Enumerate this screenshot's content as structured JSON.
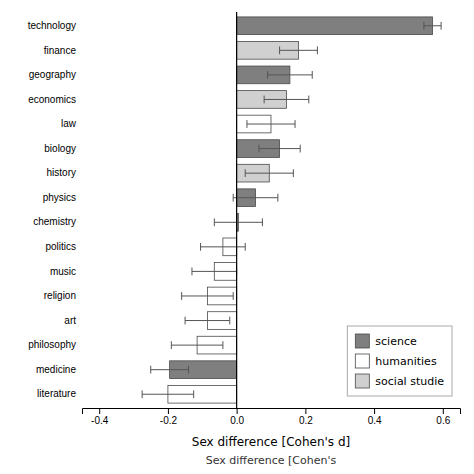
{
  "chart_data": {
    "type": "bar",
    "orientation": "horizontal",
    "xlabel": "Sex difference [Cohen's d]",
    "annotations": [
      "Sex difference [Cohen's "
    ],
    "categories": [
      "technology",
      "finance",
      "geography",
      "economics",
      "law",
      "biology",
      "history",
      "physics",
      "chemistry",
      "politics",
      "music",
      "religion",
      "art",
      "philosophy",
      "medicine",
      "literature"
    ],
    "series": [
      {
        "name": "science",
        "color": "#7f7f7f",
        "values": [
          0.57,
          null,
          0.155,
          null,
          null,
          0.125,
          null,
          0.055,
          0.005,
          null,
          null,
          null,
          null,
          null,
          -0.195,
          null
        ],
        "errors": [
          0.025,
          null,
          0.065,
          null,
          null,
          0.06,
          null,
          0.065,
          0.07,
          null,
          null,
          null,
          null,
          null,
          0.055,
          null
        ]
      },
      {
        "name": "humanities",
        "color": "#ffffff",
        "values": [
          null,
          null,
          null,
          null,
          0.1,
          null,
          null,
          null,
          null,
          -0.04,
          -0.065,
          -0.085,
          -0.085,
          -0.115,
          null,
          -0.2
        ],
        "errors": [
          null,
          null,
          null,
          null,
          0.07,
          null,
          null,
          null,
          null,
          0.065,
          0.065,
          0.075,
          0.065,
          0.075,
          null,
          0.075
        ]
      },
      {
        "name": "social studie",
        "color": "#d0d0d0",
        "values": [
          null,
          0.18,
          null,
          0.145,
          null,
          null,
          0.095,
          null,
          null,
          null,
          null,
          null,
          null,
          null,
          null,
          null
        ],
        "errors": [
          null,
          0.055,
          null,
          0.065,
          null,
          null,
          0.07,
          null,
          null,
          null,
          null,
          null,
          null,
          null,
          null,
          null
        ]
      }
    ],
    "xlim": [
      -0.45,
      0.65
    ],
    "xticks": [
      -0.4,
      -0.2,
      {
        "value": 0,
        "label": "0.0"
      },
      0.2,
      0.4,
      0.6
    ],
    "grid": false,
    "legend": "lower right"
  }
}
